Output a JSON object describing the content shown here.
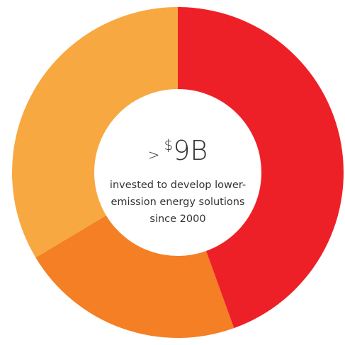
{
  "chart_data": {
    "type": "pie",
    "values": [
      44.5,
      21.9,
      33.6
    ],
    "colors": [
      "#ee2027",
      "#f47f24",
      "#f8a840"
    ],
    "headline": {
      "prefix": ">",
      "symbol": "$",
      "figure": "9B"
    },
    "caption_lines": [
      "invested to develop lower-",
      "emission energy solutions",
      "since 2000"
    ]
  }
}
